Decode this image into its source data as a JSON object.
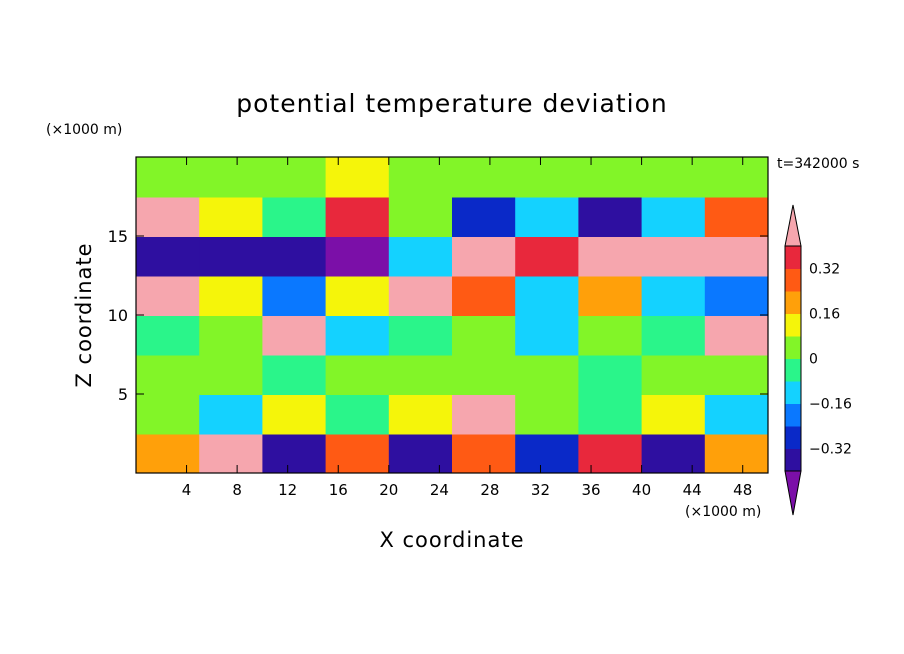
{
  "chart_data": {
    "type": "heatmap",
    "title": "potential temperature deviation",
    "xlabel": "X coordinate",
    "ylabel": "Z coordinate",
    "x_unit": "(×1000 m)",
    "y_unit": "(×1000 m)",
    "time_label": "t=342000 s",
    "xlim": [
      0,
      50
    ],
    "ylim": [
      0,
      20
    ],
    "x_ticks": [
      4,
      8,
      12,
      16,
      20,
      24,
      28,
      32,
      36,
      40,
      44,
      48
    ],
    "y_ticks": [
      5,
      10,
      15
    ],
    "colorbar": {
      "levels": [
        -0.4,
        -0.32,
        -0.24,
        -0.16,
        -0.08,
        0,
        0.08,
        0.16,
        0.24,
        0.32,
        0.4
      ],
      "tick_labels": [
        "0.32",
        "0.16",
        "0",
        "−0.16",
        "−0.32"
      ],
      "tick_values": [
        0.32,
        0.16,
        0,
        -0.16,
        -0.32
      ],
      "colors": [
        "#7b0fa8",
        "#2e0fa0",
        "#0a29c8",
        "#0a78ff",
        "#14d2ff",
        "#2af58a",
        "#82f528",
        "#f5f50a",
        "#ffa00a",
        "#ff5a14",
        "#e8283c",
        "#f6a6ae"
      ]
    },
    "field_description_grid": {
      "nx": 10,
      "nz": 8,
      "z_centers": [
        1.25,
        3.75,
        6.25,
        8.75,
        11.25,
        13.75,
        16.25,
        18.75
      ],
      "x_centers": [
        2.5,
        7.5,
        12.5,
        17.5,
        22.5,
        27.5,
        32.5,
        37.5,
        42.5,
        47.5
      ],
      "values": [
        [
          0.2,
          0.45,
          -0.35,
          0.3,
          -0.4,
          0.25,
          -0.3,
          0.35,
          -0.35,
          0.2
        ],
        [
          0.05,
          -0.1,
          0.1,
          -0.05,
          0.15,
          0.45,
          0.05,
          -0.05,
          0.1,
          -0.1
        ],
        [
          0.0,
          0.05,
          -0.05,
          0.05,
          0.0,
          0.05,
          0.0,
          -0.05,
          0.05,
          0.0
        ],
        [
          -0.05,
          0.05,
          0.4,
          -0.1,
          -0.05,
          0.0,
          -0.1,
          0.05,
          -0.05,
          0.4
        ],
        [
          0.45,
          0.1,
          -0.2,
          0.1,
          0.45,
          0.3,
          -0.15,
          0.2,
          -0.1,
          -0.2
        ],
        [
          -0.4,
          -0.35,
          -0.4,
          -0.45,
          -0.1,
          0.45,
          0.35,
          0.45,
          0.45,
          0.45
        ],
        [
          0.45,
          0.15,
          -0.05,
          0.35,
          0.05,
          -0.3,
          -0.1,
          -0.4,
          -0.15,
          0.3
        ],
        [
          0.0,
          0.05,
          0.05,
          0.1,
          0.05,
          0.0,
          0.05,
          0.0,
          0.0,
          0.0
        ]
      ]
    }
  }
}
